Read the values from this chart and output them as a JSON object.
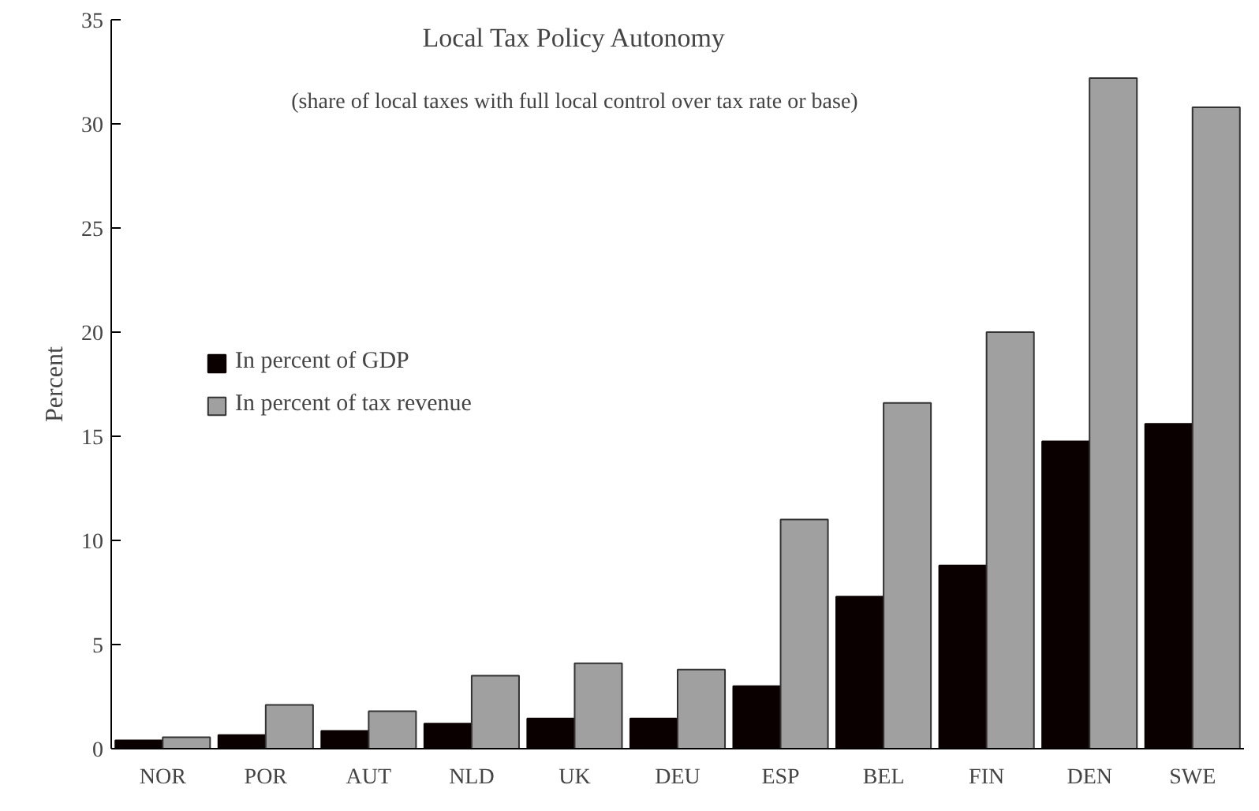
{
  "chart_data": {
    "type": "bar",
    "title": "Local Tax Policy Autonomy",
    "subtitle": "(share of local taxes with full local control over tax rate or base)",
    "ylabel": "Percent",
    "categories": [
      "NOR",
      "POR",
      "AUT",
      "NLD",
      "UK",
      "DEU",
      "ESP",
      "BEL",
      "FIN",
      "DEN",
      "SWE"
    ],
    "series": [
      {
        "name": "In percent of GDP",
        "color": "#0a0000",
        "values": [
          0.4,
          0.65,
          0.85,
          1.2,
          1.45,
          1.45,
          3.0,
          7.3,
          8.8,
          14.75,
          15.6
        ]
      },
      {
        "name": "In percent of tax revenue",
        "color": "#a0a0a0",
        "values": [
          0.55,
          2.1,
          1.8,
          3.5,
          4.1,
          3.8,
          11.0,
          16.6,
          20.0,
          32.2,
          30.8
        ]
      }
    ],
    "ylim": [
      0,
      35
    ],
    "yticks": [
      0,
      5,
      10,
      15,
      20,
      25,
      30,
      35
    ],
    "grid": false,
    "legend": "left"
  }
}
